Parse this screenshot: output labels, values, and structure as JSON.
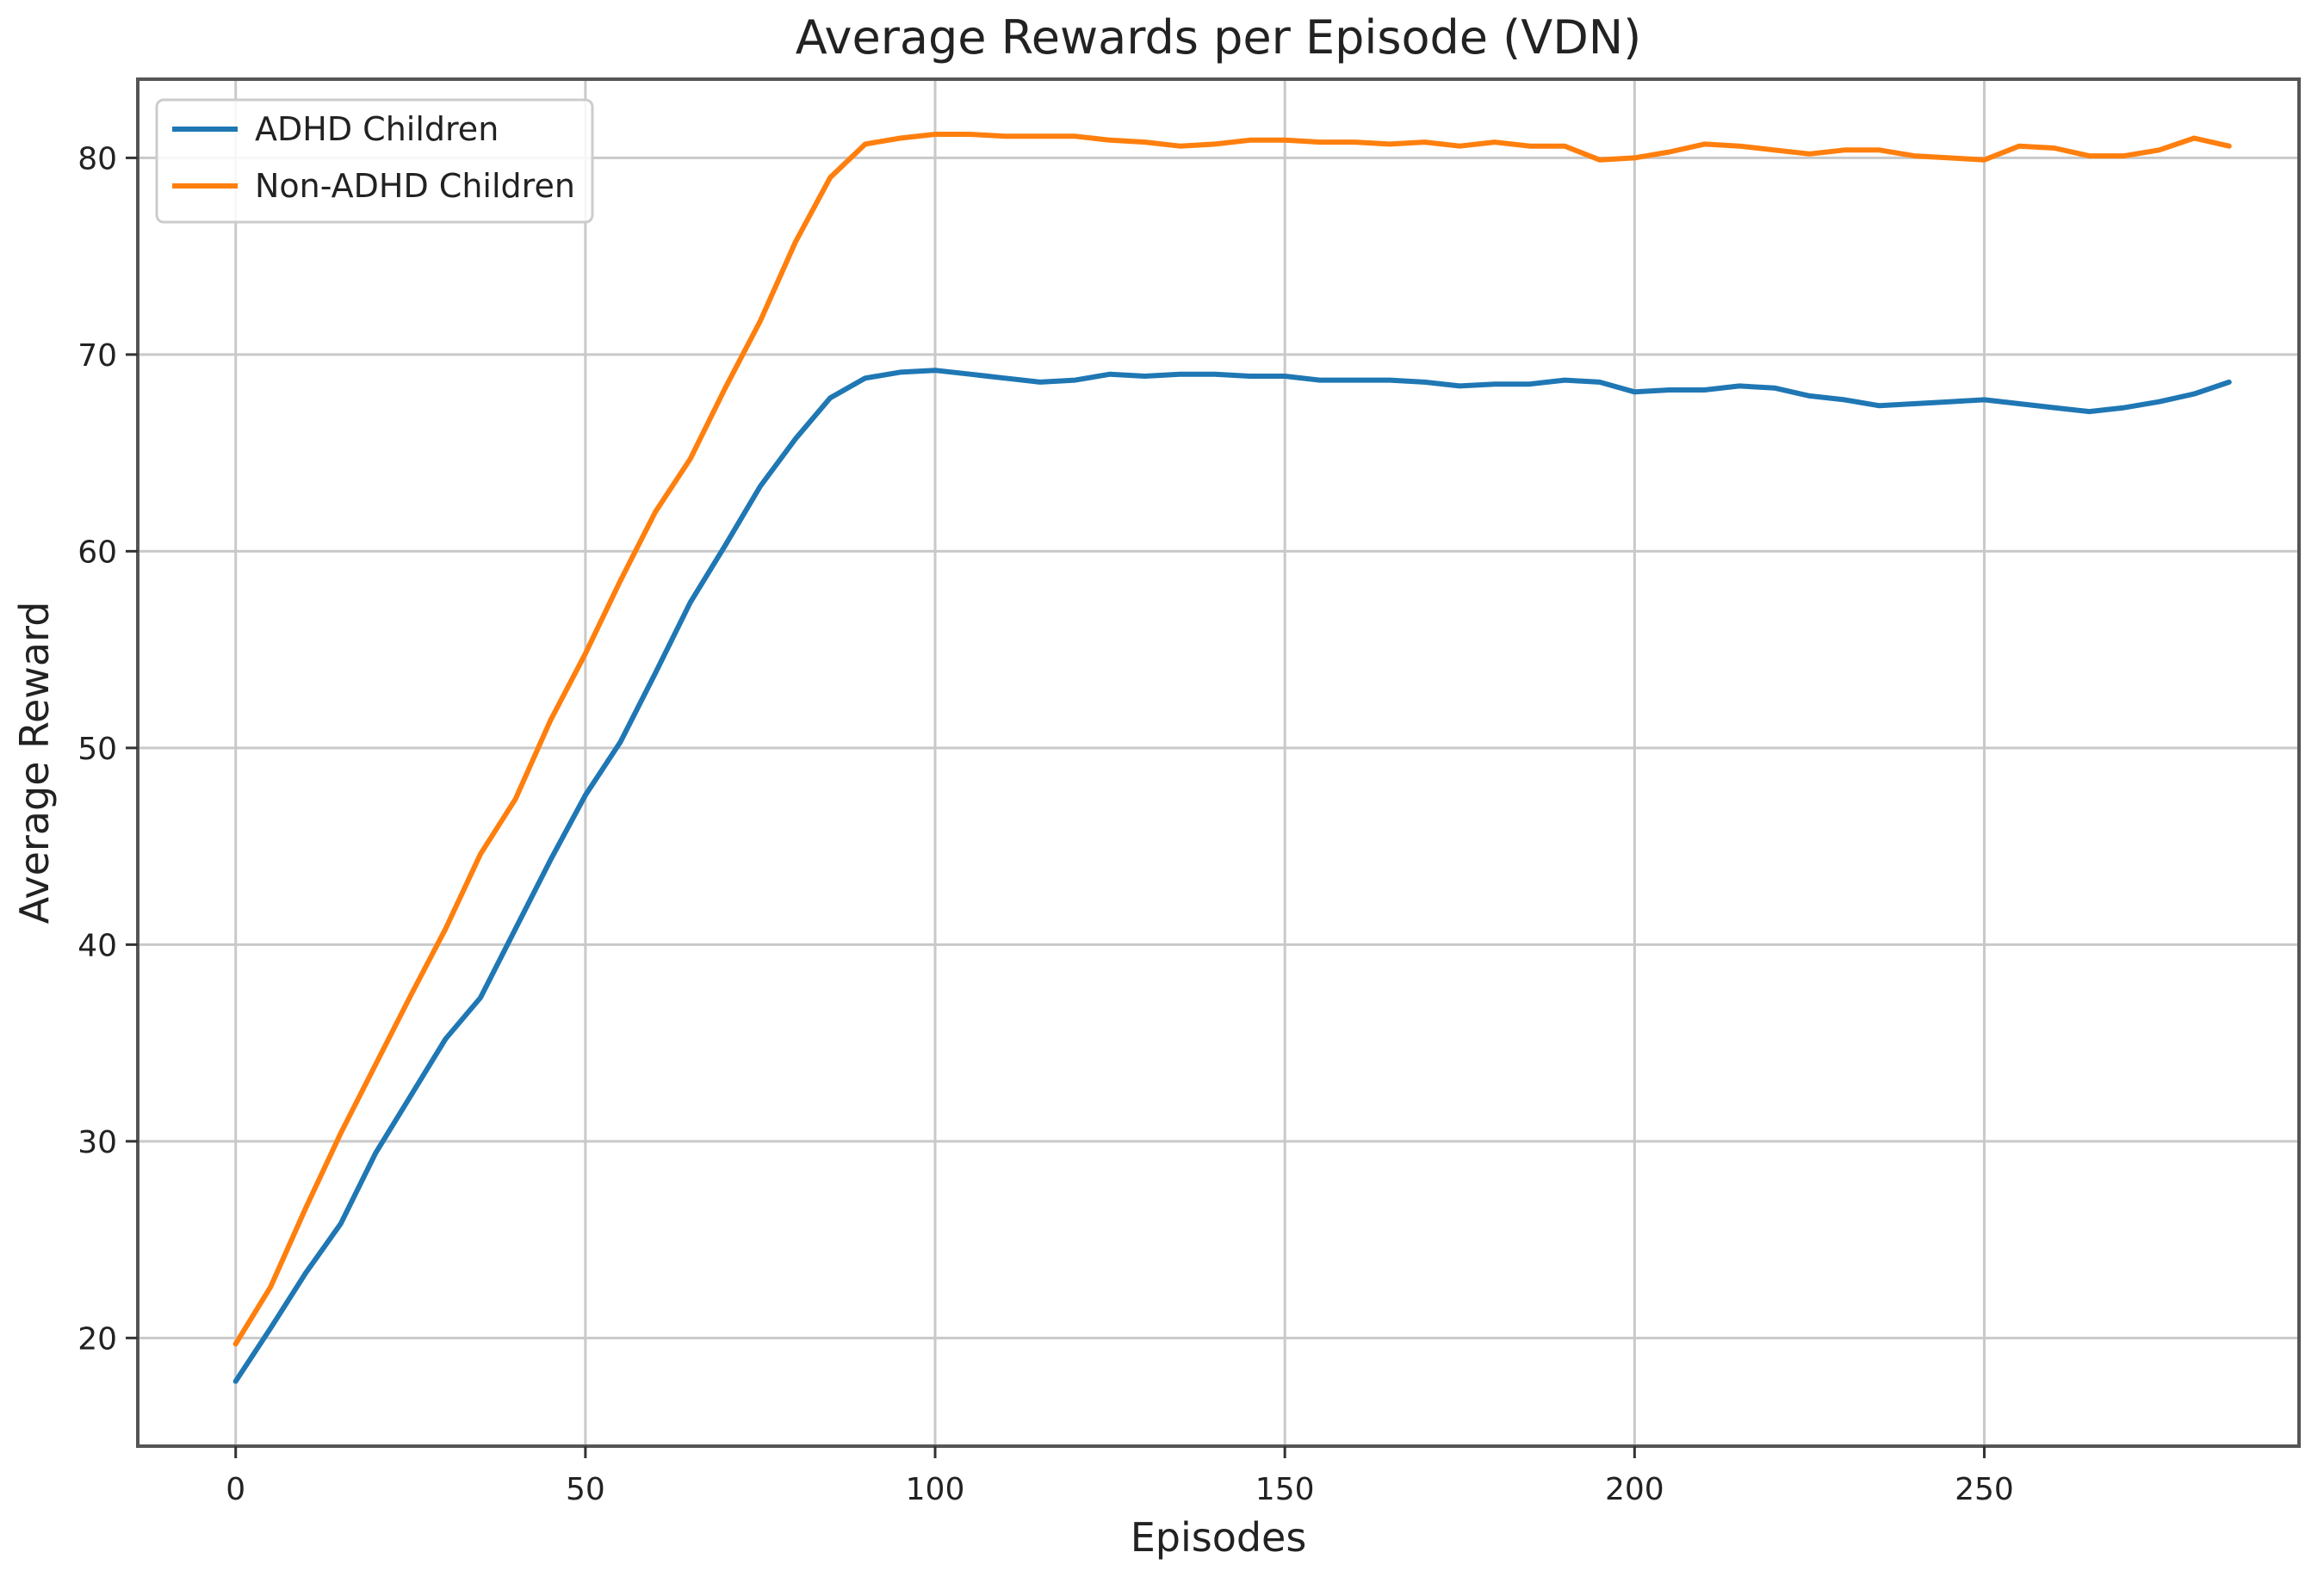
{
  "chart_data": {
    "type": "line",
    "title": "Average Rewards per Episode (VDN)",
    "xlabel": "Episodes",
    "ylabel": "Average Reward",
    "xlim": [
      -14,
      295
    ],
    "ylim": [
      14.5,
      84
    ],
    "xticks": [
      0,
      50,
      100,
      150,
      200,
      250
    ],
    "yticks": [
      20,
      30,
      40,
      50,
      60,
      70,
      80
    ],
    "grid": true,
    "legend_position": "top-left",
    "series": [
      {
        "name": "ADHD Children",
        "color": "#1f77b4",
        "points": [
          [
            0,
            17.8
          ],
          [
            5,
            20.5
          ],
          [
            10,
            23.3
          ],
          [
            15,
            25.8
          ],
          [
            20,
            29.4
          ],
          [
            25,
            32.3
          ],
          [
            30,
            35.2
          ],
          [
            35,
            37.3
          ],
          [
            40,
            40.8
          ],
          [
            45,
            44.3
          ],
          [
            50,
            47.6
          ],
          [
            55,
            50.3
          ],
          [
            60,
            53.8
          ],
          [
            65,
            57.4
          ],
          [
            70,
            60.3
          ],
          [
            75,
            63.3
          ],
          [
            80,
            65.7
          ],
          [
            85,
            67.8
          ],
          [
            90,
            68.8
          ],
          [
            95,
            69.1
          ],
          [
            100,
            69.2
          ],
          [
            105,
            69.0
          ],
          [
            110,
            68.8
          ],
          [
            115,
            68.6
          ],
          [
            120,
            68.7
          ],
          [
            125,
            69.0
          ],
          [
            130,
            68.9
          ],
          [
            135,
            69.0
          ],
          [
            140,
            69.0
          ],
          [
            145,
            68.9
          ],
          [
            150,
            68.9
          ],
          [
            155,
            68.7
          ],
          [
            160,
            68.7
          ],
          [
            165,
            68.7
          ],
          [
            170,
            68.6
          ],
          [
            175,
            68.4
          ],
          [
            180,
            68.5
          ],
          [
            185,
            68.5
          ],
          [
            190,
            68.7
          ],
          [
            195,
            68.6
          ],
          [
            200,
            68.1
          ],
          [
            205,
            68.2
          ],
          [
            210,
            68.2
          ],
          [
            215,
            68.4
          ],
          [
            220,
            68.3
          ],
          [
            225,
            67.9
          ],
          [
            230,
            67.7
          ],
          [
            235,
            67.4
          ],
          [
            240,
            67.5
          ],
          [
            245,
            67.6
          ],
          [
            250,
            67.7
          ],
          [
            255,
            67.5
          ],
          [
            260,
            67.3
          ],
          [
            265,
            67.1
          ],
          [
            270,
            67.3
          ],
          [
            275,
            67.6
          ],
          [
            280,
            68.0
          ],
          [
            285,
            68.6
          ]
        ]
      },
      {
        "name": "Non-ADHD Children",
        "color": "#ff7f0e",
        "points": [
          [
            0,
            19.7
          ],
          [
            5,
            22.6
          ],
          [
            10,
            26.6
          ],
          [
            15,
            30.4
          ],
          [
            20,
            33.9
          ],
          [
            25,
            37.4
          ],
          [
            30,
            40.8
          ],
          [
            35,
            44.6
          ],
          [
            40,
            47.4
          ],
          [
            45,
            51.4
          ],
          [
            50,
            54.8
          ],
          [
            55,
            58.5
          ],
          [
            60,
            62.0
          ],
          [
            65,
            64.7
          ],
          [
            70,
            68.3
          ],
          [
            75,
            71.7
          ],
          [
            80,
            75.7
          ],
          [
            85,
            79.0
          ],
          [
            90,
            80.7
          ],
          [
            95,
            81.0
          ],
          [
            100,
            81.2
          ],
          [
            105,
            81.2
          ],
          [
            110,
            81.1
          ],
          [
            115,
            81.1
          ],
          [
            120,
            81.1
          ],
          [
            125,
            80.9
          ],
          [
            130,
            80.8
          ],
          [
            135,
            80.6
          ],
          [
            140,
            80.7
          ],
          [
            145,
            80.9
          ],
          [
            150,
            80.9
          ],
          [
            155,
            80.8
          ],
          [
            160,
            80.8
          ],
          [
            165,
            80.7
          ],
          [
            170,
            80.8
          ],
          [
            175,
            80.6
          ],
          [
            180,
            80.8
          ],
          [
            185,
            80.6
          ],
          [
            190,
            80.6
          ],
          [
            195,
            79.9
          ],
          [
            200,
            80.0
          ],
          [
            205,
            80.3
          ],
          [
            210,
            80.7
          ],
          [
            215,
            80.6
          ],
          [
            220,
            80.4
          ],
          [
            225,
            80.2
          ],
          [
            230,
            80.4
          ],
          [
            235,
            80.4
          ],
          [
            240,
            80.1
          ],
          [
            245,
            80.0
          ],
          [
            250,
            79.9
          ],
          [
            255,
            80.6
          ],
          [
            260,
            80.5
          ],
          [
            265,
            80.1
          ],
          [
            270,
            80.1
          ],
          [
            275,
            80.4
          ],
          [
            280,
            81.0
          ],
          [
            285,
            80.6
          ]
        ]
      }
    ]
  }
}
